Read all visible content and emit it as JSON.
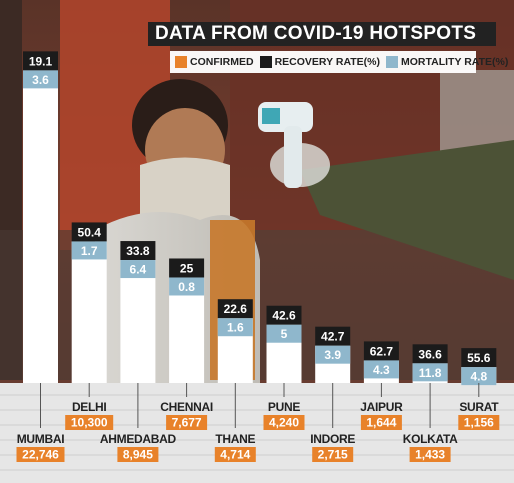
{
  "title": "DATA FROM COVID-19 HOTSPOTS",
  "legend": [
    {
      "label": "CONFIRMED",
      "color": "#e8822a"
    },
    {
      "label": "RECOVERY RATE(%)",
      "color": "#1b1b1b"
    },
    {
      "label": "MORTALITY RATE(%)",
      "color": "#8fb7cc"
    }
  ],
  "chart_data": {
    "type": "bar",
    "categories": [
      "MUMBAI",
      "DELHI",
      "AHMEDABAD",
      "CHENNAI",
      "THANE",
      "PUNE",
      "INDORE",
      "JAIPUR",
      "KOLKATA",
      "SURAT"
    ],
    "confirmed_labels": [
      "22,746",
      "10,300",
      "8,945",
      "7,677",
      "4,714",
      "4,240",
      "2,715",
      "1,644",
      "1,433",
      "1,156"
    ],
    "series": [
      {
        "name": "CONFIRMED",
        "values": [
          22746,
          10300,
          8945,
          7677,
          4714,
          4240,
          2715,
          1644,
          1433,
          1156
        ]
      },
      {
        "name": "RECOVERY RATE(%)",
        "values": [
          19.1,
          50.4,
          33.8,
          25,
          22.6,
          42.6,
          42.7,
          62.7,
          36.6,
          55.6
        ]
      },
      {
        "name": "MORTALITY RATE(%)",
        "values": [
          3.6,
          1.7,
          6.4,
          0.8,
          1.6,
          5,
          3.9,
          4.3,
          11.8,
          4.8
        ]
      }
    ],
    "recovery_labels": [
      "19.1",
      "50.4",
      "33.8",
      "25",
      "22.6",
      "42.6",
      "42.7",
      "62.7",
      "36.6",
      "55.6"
    ],
    "mortality_labels": [
      "3.6",
      "1.7",
      "6.4",
      "0.8",
      "1.6",
      "5",
      "3.9",
      "4.3",
      "11.8",
      "4.8"
    ],
    "label_row": [
      "bottom",
      "top",
      "bottom",
      "top",
      "bottom",
      "top",
      "bottom",
      "top",
      "bottom",
      "top"
    ],
    "background": "photo"
  }
}
